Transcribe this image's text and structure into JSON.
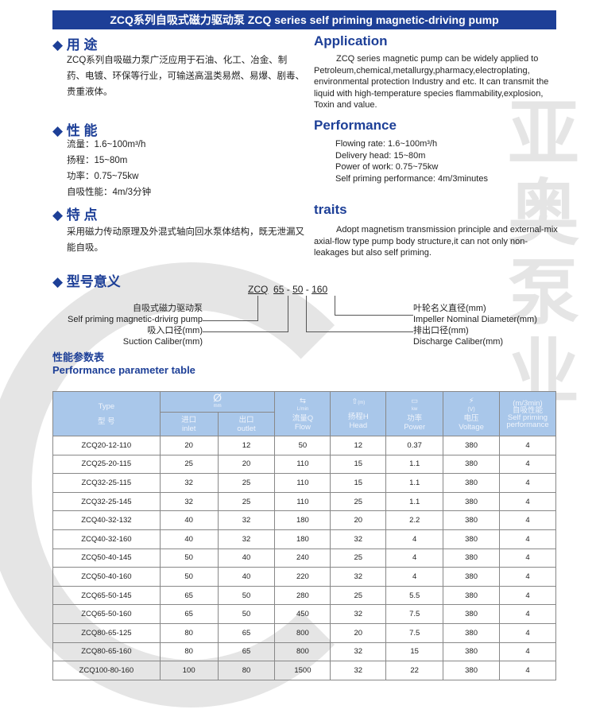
{
  "banner": "ZCQ系列自吸式磁力驱动泵 ZCQ series self priming magnetic-driving pump",
  "usage": {
    "title_cn": "◆ 用 途",
    "text_cn": "ZCQ系列自吸磁力泵广泛应用于石油、化工、冶金、制药、电镀、环保等行业，可输送高温类易燃、易爆、剧毒、贵重液体。",
    "title_en": "Application",
    "text_en": "ZCQ series magnetic pump can be widely applied to Petroleum,chemical,metallurgy,pharmacy,electroplating, environmental protection Industry and etc. It can transmit the liquid with high-temperature species flammability,explosion, Toxin and value."
  },
  "performance": {
    "title_cn": "◆ 性 能",
    "lines_cn": [
      "流量：1.6~100m³/h",
      "扬程：15~80m",
      "功率：0.75~75kw",
      "自吸性能：4m/3分钟"
    ],
    "title_en": "Performance",
    "lines_en": [
      "Flowing rate: 1.6~100m³/h",
      "Delivery head: 15~80m",
      "Power of work: 0.75~75kw",
      "Self priming performance: 4m/3minutes"
    ]
  },
  "traits": {
    "title_cn": "◆ 特 点",
    "text_cn": "采用磁力传动原理及外混式轴向回水泵体结构，既无泄漏又能自吸。",
    "title_en": "traits",
    "text_en": "Adopt magnetism transmission principle and external-mix axial-flow type pump body structure,it can not only non-leakages but also self priming."
  },
  "model": {
    "title": "◆ 型号意义",
    "code": [
      "ZCQ",
      "65",
      "-",
      "50",
      "-",
      "160"
    ],
    "left1_cn": "自吸式磁力驱动泵",
    "left1_en": "Self priming magnetic-drivirg pump",
    "left2_cn": "吸入口径(mm)",
    "left2_en": "Suction Caliber(mm)",
    "right1_cn": "叶轮名义直径(mm)",
    "right1_en": "Impeller Nominal Diameter(mm)",
    "right2_cn": "排出口径(mm)",
    "right2_en": "Discharge Caliber(mm)"
  },
  "table_title_cn": "性能参数表",
  "table_title_en": "Performance parameter table",
  "table": {
    "headers": {
      "type_en": "Type",
      "type_cn": "型 号",
      "dia_icon": "Ø",
      "dia_unit": "mm",
      "inlet_cn": "进口",
      "inlet_en": "inlet",
      "outlet_cn": "出口",
      "outlet_en": "outlet",
      "flow_unit": "L/min",
      "flow_cn": "流量Q",
      "flow_en": "Flow",
      "head_unit": "(m)",
      "head_cn": "扬程H",
      "head_en": "Head",
      "power_unit": "kw",
      "power_cn": "功率",
      "power_en": "Power",
      "volt_unit": "(V)",
      "volt_cn": "电压",
      "volt_en": "Voltage",
      "self_unit": "(m/3min)",
      "self_cn": "自吸性能",
      "self_en": "Self priming performance"
    },
    "rows": [
      [
        "ZCQ20-12-110",
        "20",
        "12",
        "50",
        "12",
        "0.37",
        "380",
        "4"
      ],
      [
        "ZCQ25-20-115",
        "25",
        "20",
        "110",
        "15",
        "1.1",
        "380",
        "4"
      ],
      [
        "ZCQ32-25-115",
        "32",
        "25",
        "110",
        "15",
        "1.1",
        "380",
        "4"
      ],
      [
        "ZCQ32-25-145",
        "32",
        "25",
        "110",
        "25",
        "1.1",
        "380",
        "4"
      ],
      [
        "ZCQ40-32-132",
        "40",
        "32",
        "180",
        "20",
        "2.2",
        "380",
        "4"
      ],
      [
        "ZCQ40-32-160",
        "40",
        "32",
        "180",
        "32",
        "4",
        "380",
        "4"
      ],
      [
        "ZCQ50-40-145",
        "50",
        "40",
        "240",
        "25",
        "4",
        "380",
        "4"
      ],
      [
        "ZCQ50-40-160",
        "50",
        "40",
        "220",
        "32",
        "4",
        "380",
        "4"
      ],
      [
        "ZCQ65-50-145",
        "65",
        "50",
        "280",
        "25",
        "5.5",
        "380",
        "4"
      ],
      [
        "ZCQ65-50-160",
        "65",
        "50",
        "450",
        "32",
        "7.5",
        "380",
        "4"
      ],
      [
        "ZCQ80-65-125",
        "80",
        "65",
        "800",
        "20",
        "7.5",
        "380",
        "4"
      ],
      [
        "ZCQ80-65-160",
        "80",
        "65",
        "800",
        "32",
        "15",
        "380",
        "4"
      ],
      [
        "ZCQ100-80-160",
        "100",
        "80",
        "1500",
        "32",
        "22",
        "380",
        "4"
      ]
    ]
  },
  "watermark": "亚奥泵业"
}
